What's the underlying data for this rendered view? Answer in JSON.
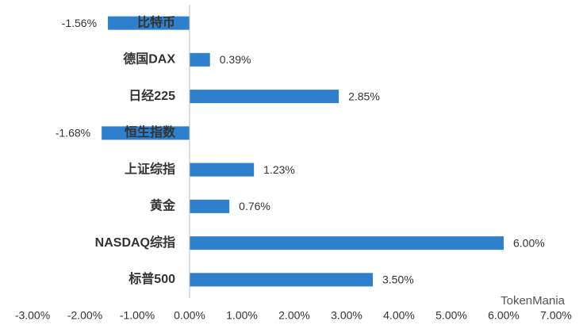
{
  "chart_data": {
    "type": "bar",
    "orientation": "horizontal",
    "categories": [
      "比特币",
      "德国DAX",
      "日经225",
      "恒生指数",
      "上证综指",
      "黄金",
      "NASDAQ综指",
      "标普500"
    ],
    "values": [
      -1.56,
      0.39,
      2.85,
      -1.68,
      1.23,
      0.76,
      6.0,
      3.5
    ],
    "value_labels": [
      "-1.56%",
      "0.39%",
      "2.85%",
      "-1.68%",
      "1.23%",
      "0.76%",
      "6.00%",
      "3.50%"
    ],
    "color": "#2f80cc",
    "xlim": [
      -3,
      7
    ],
    "xticks": [
      {
        "value": -3,
        "label": "-3.00%"
      },
      {
        "value": -2,
        "label": "-2.00%"
      },
      {
        "value": -1,
        "label": "-1.00%"
      },
      {
        "value": 0,
        "label": "0.00%"
      },
      {
        "value": 1,
        "label": "1.00%"
      },
      {
        "value": 2,
        "label": "2.00%"
      },
      {
        "value": 3,
        "label": "3.00%"
      },
      {
        "value": 4,
        "label": "4.00%"
      },
      {
        "value": 5,
        "label": "5.00%"
      },
      {
        "value": 6,
        "label": "6.00%"
      },
      {
        "value": 7,
        "label": "7.00%"
      }
    ],
    "grid": false,
    "watermark": "TokenMania"
  }
}
